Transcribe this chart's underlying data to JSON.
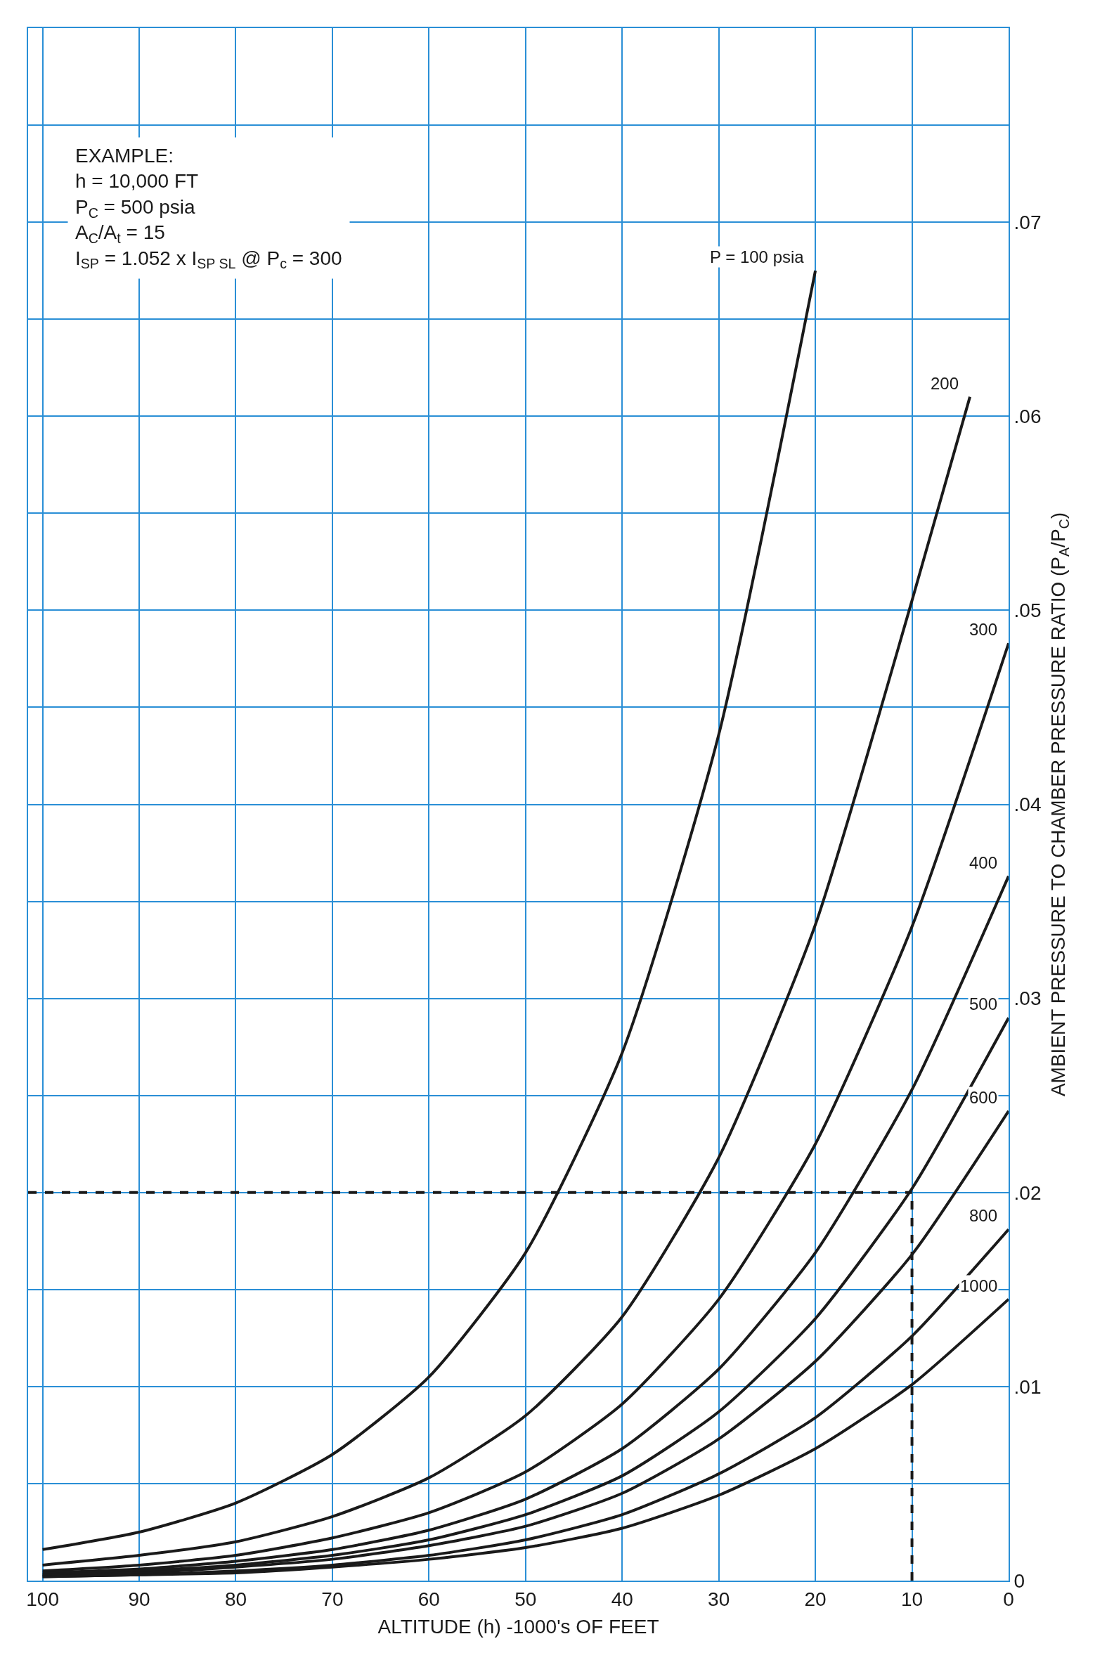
{
  "chart_data": {
    "type": "line",
    "xlabel": "ALTITUDE (h) -1000's OF FEET",
    "ylabel": "AMBIENT PRESSURE TO CHAMBER PRESSURE RATIO (P$_{A}$/P$_{C}$)",
    "xlim": [
      101.5,
      0
    ],
    "xticks": [
      0,
      10,
      20,
      30,
      40,
      50,
      60,
      70,
      80,
      90,
      100
    ],
    "ylim": [
      0,
      0.08
    ],
    "yticks": [
      {
        "value": 0,
        "label": "0"
      },
      {
        "value": 0.005,
        "label": null
      },
      {
        "value": 0.01,
        "label": ".01"
      },
      {
        "value": 0.015,
        "label": null
      },
      {
        "value": 0.02,
        "label": ".02"
      },
      {
        "value": 0.025,
        "label": null
      },
      {
        "value": 0.03,
        "label": ".03"
      },
      {
        "value": 0.035,
        "label": null
      },
      {
        "value": 0.04,
        "label": ".04"
      },
      {
        "value": 0.045,
        "label": null
      },
      {
        "value": 0.05,
        "label": ".05"
      },
      {
        "value": 0.055,
        "label": null
      },
      {
        "value": 0.06,
        "label": ".06"
      },
      {
        "value": 0.065,
        "label": null
      },
      {
        "value": 0.07,
        "label": ".07"
      },
      {
        "value": 0.075,
        "label": null
      }
    ],
    "grid": true,
    "legend": false,
    "marker": "none",
    "line_style": "solid",
    "series": [
      {
        "name": "P = 100 psia",
        "color": "#1a1a1a",
        "x": [
          100,
          90,
          80,
          70,
          60,
          50,
          40,
          30,
          20
        ],
        "values": [
          0.0016,
          0.0025,
          0.004,
          0.0065,
          0.0105,
          0.0169,
          0.0272,
          0.0436,
          0.0675
        ]
      },
      {
        "name": "200",
        "color": "#1a1a1a",
        "x": [
          100,
          90,
          80,
          70,
          60,
          50,
          40,
          30,
          20,
          10,
          4
        ],
        "values": [
          0.0008,
          0.0013,
          0.002,
          0.0033,
          0.0053,
          0.0085,
          0.0136,
          0.0218,
          0.0338,
          0.0505,
          0.061
        ]
      },
      {
        "name": "300",
        "color": "#1a1a1a",
        "x": [
          100,
          90,
          80,
          70,
          60,
          50,
          40,
          30,
          20,
          10,
          0
        ],
        "values": [
          0.0005,
          0.0008,
          0.0013,
          0.0022,
          0.0035,
          0.0056,
          0.0091,
          0.0145,
          0.0225,
          0.0337,
          0.0483
        ]
      },
      {
        "name": "400",
        "color": "#1a1a1a",
        "x": [
          100,
          90,
          80,
          70,
          60,
          50,
          40,
          30,
          20,
          10,
          0
        ],
        "values": [
          0.0004,
          0.0006,
          0.001,
          0.0016,
          0.0026,
          0.0042,
          0.0068,
          0.0109,
          0.0169,
          0.0253,
          0.0363
        ]
      },
      {
        "name": "500",
        "color": "#1a1a1a",
        "x": [
          100,
          90,
          80,
          70,
          60,
          50,
          40,
          30,
          20,
          10,
          0
        ],
        "values": [
          0.0003,
          0.0005,
          0.0008,
          0.0013,
          0.0021,
          0.0034,
          0.0054,
          0.0087,
          0.0135,
          0.0202,
          0.029
        ]
      },
      {
        "name": "600",
        "color": "#1a1a1a",
        "x": [
          100,
          90,
          80,
          70,
          60,
          50,
          40,
          30,
          20,
          10,
          0
        ],
        "values": [
          0.0003,
          0.0004,
          0.0007,
          0.0011,
          0.0018,
          0.0028,
          0.0045,
          0.0073,
          0.0113,
          0.0168,
          0.0242
        ]
      },
      {
        "name": "800",
        "color": "#1a1a1a",
        "x": [
          100,
          90,
          80,
          70,
          60,
          50,
          40,
          30,
          20,
          10,
          0
        ],
        "values": [
          0.0002,
          0.0003,
          0.0005,
          0.0008,
          0.0013,
          0.0021,
          0.0034,
          0.0055,
          0.0084,
          0.0126,
          0.0181
        ]
      },
      {
        "name": "1000",
        "color": "#1a1a1a",
        "x": [
          100,
          90,
          80,
          70,
          60,
          50,
          40,
          30,
          20,
          10,
          0
        ],
        "values": [
          0.0002,
          0.0003,
          0.0004,
          0.0007,
          0.0011,
          0.0017,
          0.0027,
          0.0044,
          0.0068,
          0.0101,
          0.0145
        ]
      }
    ],
    "ref_lines": [
      {
        "axis": "y",
        "value": 0.02,
        "color": "#1a1a1a",
        "line_style": "dashed"
      },
      {
        "axis": "x",
        "value": 10,
        "color": "#1a1a1a",
        "line_style": "dashed"
      }
    ],
    "annotations": [
      "EXAMPLE:",
      "h = 10,000 FT",
      "P$_{C}$ = 500 psia",
      "A$_{C}$/A$_{t}$ = 15",
      "I$_{SP}$ = 1.052 x I$_{SP SL}$ @ P$_{c}$ = 300"
    ]
  }
}
